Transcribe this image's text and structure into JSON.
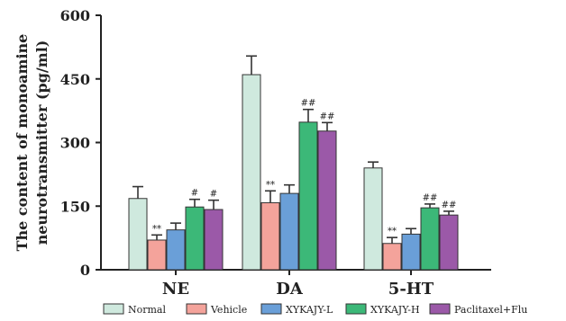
{
  "chart_data": {
    "type": "bar",
    "ylabel_lines": [
      "The content of monoamine",
      "neurotransmitter (pg/ml)"
    ],
    "categories": [
      "NE",
      "DA",
      "5-HT"
    ],
    "ylim": [
      0,
      600
    ],
    "yticks": [
      0,
      150,
      300,
      450,
      600
    ],
    "grid": false,
    "legend_position": "bottom",
    "series": [
      {
        "name": "Normal",
        "color": "#cfe9de",
        "values": [
          168,
          460,
          240
        ],
        "errors": [
          28,
          44,
          14
        ],
        "annotations": [
          "",
          "",
          ""
        ]
      },
      {
        "name": "Vehicle",
        "color": "#f4a39b",
        "values": [
          70,
          158,
          62
        ],
        "errors": [
          12,
          28,
          14
        ],
        "annotations": [
          "**",
          "**",
          "**"
        ]
      },
      {
        "name": "XYKAJY-L",
        "color": "#6a9fd8",
        "values": [
          94,
          180,
          84
        ],
        "errors": [
          16,
          20,
          13
        ],
        "annotations": [
          "",
          "",
          ""
        ]
      },
      {
        "name": "XYKAJY-H",
        "color": "#3cb878",
        "values": [
          148,
          348,
          146
        ],
        "errors": [
          18,
          30,
          9
        ],
        "annotations": [
          "#",
          "##",
          "##"
        ]
      },
      {
        "name": "Paclitaxel+Flu",
        "color": "#9b59a8",
        "values": [
          142,
          327,
          129
        ],
        "errors": [
          22,
          20,
          9
        ],
        "annotations": [
          "#",
          "##",
          "##"
        ]
      }
    ]
  }
}
